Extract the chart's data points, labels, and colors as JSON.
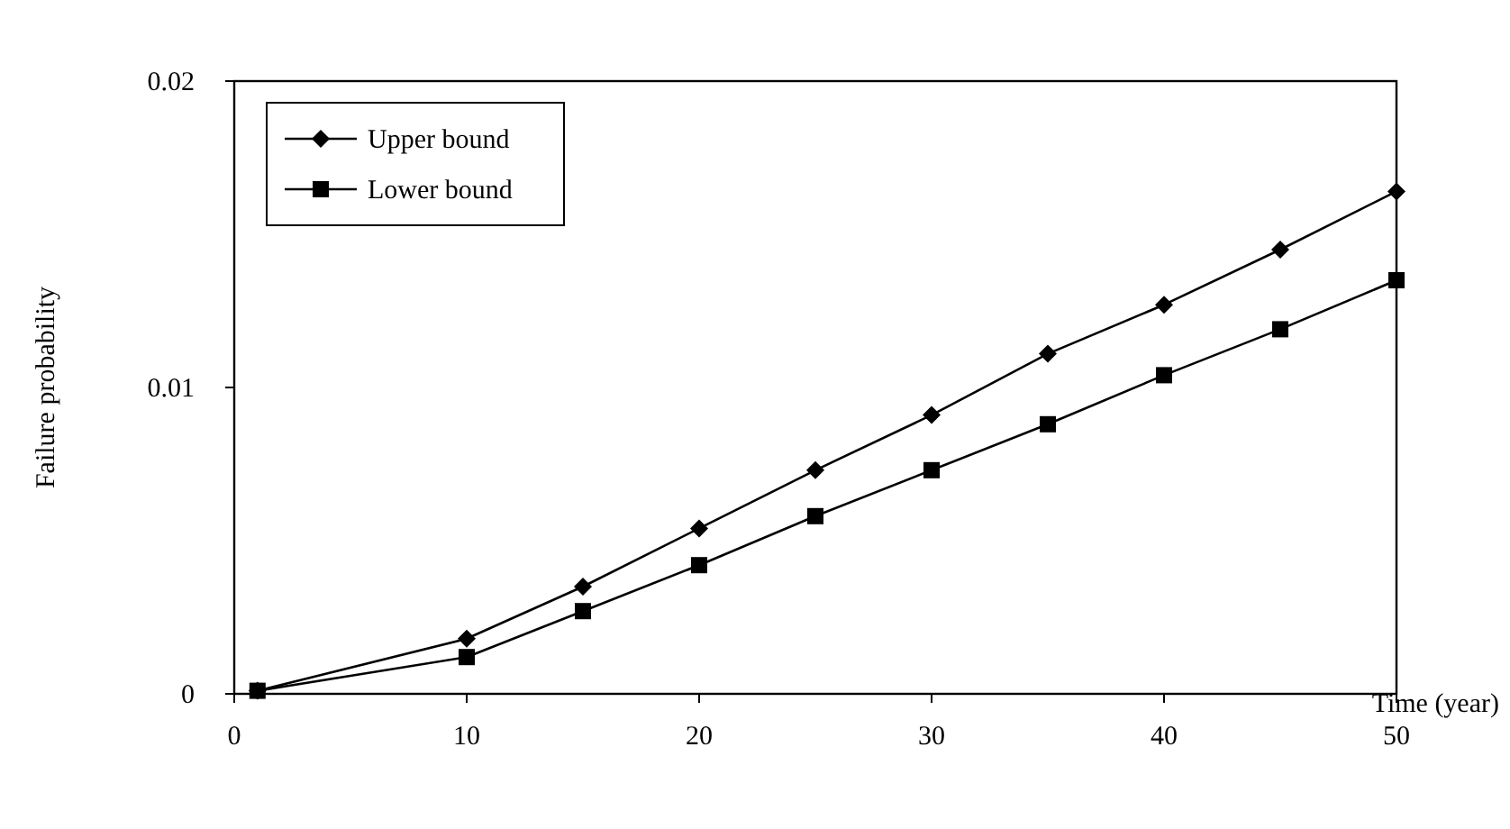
{
  "chart_data": {
    "type": "line",
    "xlabel": "Time (year)",
    "ylabel": "Failure probability",
    "x": [
      1,
      10,
      15,
      20,
      25,
      30,
      35,
      40,
      45,
      50
    ],
    "series": [
      {
        "name": "Upper bound",
        "color": "#000000",
        "marker": "diamond",
        "values": [
          0.0001,
          0.0018,
          0.0035,
          0.0054,
          0.0073,
          0.0091,
          0.0111,
          0.0127,
          0.0145,
          0.0164
        ]
      },
      {
        "name": "Lower bound",
        "color": "#000000",
        "marker": "square",
        "values": [
          0.0001,
          0.0012,
          0.0027,
          0.0042,
          0.0058,
          0.0073,
          0.0088,
          0.0104,
          0.0119,
          0.0135
        ]
      }
    ],
    "xlim": [
      0,
      50
    ],
    "xticks": [
      0,
      10,
      20,
      30,
      40,
      50
    ],
    "ylim": [
      0,
      0.02
    ],
    "yticks": [
      0,
      0.01,
      0.02
    ],
    "grid": false,
    "legend": "top left",
    "line_style": "solid"
  }
}
